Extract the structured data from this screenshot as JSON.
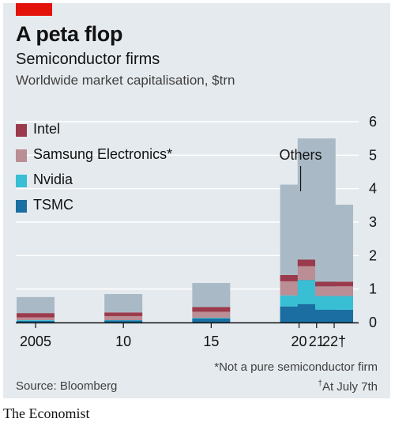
{
  "header": {
    "title": "A peta flop",
    "subtitle": "Semiconductor firms",
    "unit": "Worldwide market capitalisation, $trn"
  },
  "footer": {
    "footnote": "*Not a pure semiconductor firm",
    "source": "Source: Bloomberg",
    "asof_mark": "†",
    "asof": "At July 7th",
    "brand": "The Economist"
  },
  "colors": {
    "panel": "#e5eaee",
    "gridline": "#ffffff",
    "axis": "#121212",
    "accent": "#e3120b"
  },
  "chart_data": {
    "type": "bar",
    "stacked": true,
    "title": "A peta flop",
    "subtitle": "Semiconductor firms",
    "ylabel": "Worldwide market capitalisation, $trn",
    "x": [
      2005,
      2010,
      2015,
      2020,
      2021,
      2022
    ],
    "tick_labels": [
      "2005",
      "10",
      "15",
      "20",
      "21",
      "22†"
    ],
    "ylim": [
      0,
      6
    ],
    "yticks": [
      "0",
      "1",
      "2",
      "3",
      "4",
      "5",
      "6"
    ],
    "y_axis_side": "right",
    "grid": true,
    "legend_position": "top-left",
    "annotation": "Others",
    "series": [
      {
        "name": "TSMC",
        "color": "#1a6ea1",
        "values": [
          0.05,
          0.06,
          0.12,
          0.48,
          0.55,
          0.38
        ]
      },
      {
        "name": "Nvidia",
        "color": "#39bfd4",
        "values": [
          0.02,
          0.01,
          0.02,
          0.33,
          0.72,
          0.41
        ]
      },
      {
        "name": "Samsung Electronics*",
        "color": "#bb8d95",
        "values": [
          0.08,
          0.12,
          0.18,
          0.42,
          0.41,
          0.29
        ]
      },
      {
        "name": "Intel",
        "color": "#9b3a4c",
        "values": [
          0.13,
          0.11,
          0.14,
          0.19,
          0.2,
          0.14
        ]
      },
      {
        "name": "Others",
        "color": "#a9bac6",
        "values": [
          0.48,
          0.55,
          0.72,
          2.7,
          3.62,
          2.3
        ]
      }
    ]
  }
}
